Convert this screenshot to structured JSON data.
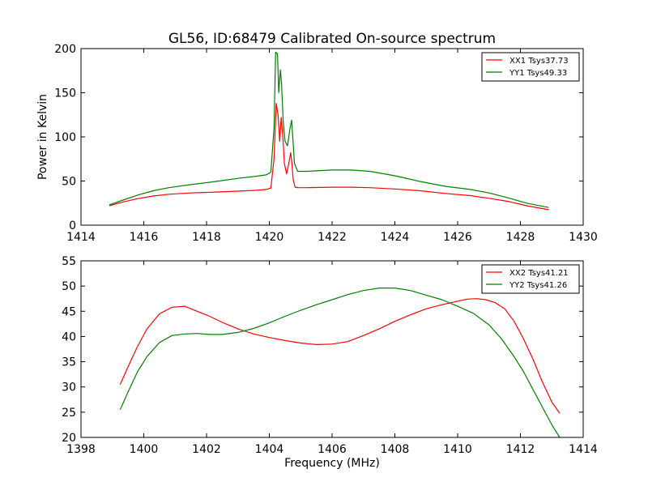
{
  "figure": {
    "title": "GL56, ID:68479 Calibrated On-source spectrum",
    "xlabel_bottom": "Frequency (MHz)"
  },
  "chart_data": [
    {
      "type": "line",
      "title": "GL56, ID:68479 Calibrated On-source spectrum",
      "xlabel": "",
      "ylabel": "Power in Kelvin",
      "xlim": [
        1414,
        1430
      ],
      "ylim": [
        0,
        200
      ],
      "xticks": [
        1414,
        1416,
        1418,
        1420,
        1422,
        1424,
        1426,
        1428,
        1430
      ],
      "yticks": [
        0,
        50,
        100,
        150,
        200
      ],
      "legend_position": "top-right",
      "series": [
        {
          "name": "XX1 Tsys37.73",
          "color": "#ff0000",
          "x": [
            1414.9,
            1415.3,
            1415.8,
            1416.3,
            1416.8,
            1417.5,
            1418.3,
            1419.0,
            1419.6,
            1419.9,
            1420.05,
            1420.15,
            1420.22,
            1420.28,
            1420.33,
            1420.38,
            1420.43,
            1420.48,
            1420.55,
            1420.62,
            1420.68,
            1420.72,
            1420.76,
            1420.82,
            1420.9,
            1421.2,
            1422.0,
            1422.6,
            1423.2,
            1424.0,
            1424.8,
            1425.6,
            1426.4,
            1427.0,
            1427.6,
            1428.2,
            1428.9
          ],
          "y": [
            22,
            26,
            30,
            33,
            35,
            36.5,
            37.5,
            38.5,
            39.5,
            40.5,
            42,
            75,
            138,
            125,
            95,
            122,
            100,
            70,
            58,
            70,
            82,
            70,
            52,
            43,
            42.5,
            42.5,
            43,
            43,
            42.5,
            41,
            39,
            36,
            33.5,
            30.5,
            27,
            22,
            17.5
          ]
        },
        {
          "name": "YY1 Tsys49.33",
          "color": "#008000",
          "x": [
            1414.9,
            1415.3,
            1415.8,
            1416.3,
            1416.8,
            1417.5,
            1418.3,
            1419.0,
            1419.6,
            1419.9,
            1420.05,
            1420.15,
            1420.2,
            1420.26,
            1420.3,
            1420.35,
            1420.39,
            1420.44,
            1420.5,
            1420.58,
            1420.66,
            1420.71,
            1420.75,
            1420.8,
            1420.9,
            1421.2,
            1422.0,
            1422.6,
            1423.2,
            1424.0,
            1424.8,
            1425.6,
            1426.4,
            1427.0,
            1427.6,
            1428.2,
            1428.9
          ],
          "y": [
            23,
            28,
            34,
            39,
            42.5,
            46,
            49.5,
            53,
            55.5,
            57,
            60,
            110,
            196,
            194,
            150,
            176,
            160,
            118,
            95,
            90,
            110,
            119,
            98,
            70,
            61,
            61,
            62.5,
            62.5,
            61,
            56,
            49.5,
            44,
            40.5,
            36.5,
            31,
            25,
            20
          ]
        }
      ]
    },
    {
      "type": "line",
      "title": "",
      "xlabel": "Frequency (MHz)",
      "ylabel": "",
      "xlim": [
        1398,
        1414
      ],
      "ylim": [
        20,
        55
      ],
      "xticks": [
        1398,
        1400,
        1402,
        1404,
        1406,
        1408,
        1410,
        1412,
        1414
      ],
      "yticks": [
        20,
        25,
        30,
        35,
        40,
        45,
        50,
        55
      ],
      "legend_position": "top-right",
      "series": [
        {
          "name": "XX2 Tsys41.21",
          "color": "#ff0000",
          "x": [
            1399.25,
            1399.5,
            1399.8,
            1400.1,
            1400.5,
            1400.9,
            1401.3,
            1401.7,
            1402.1,
            1402.5,
            1403.0,
            1403.5,
            1404.0,
            1404.5,
            1405.0,
            1405.5,
            1406.0,
            1406.5,
            1407.0,
            1407.5,
            1408.0,
            1408.5,
            1409.0,
            1409.5,
            1410.0,
            1410.3,
            1410.6,
            1410.9,
            1411.2,
            1411.5,
            1411.8,
            1412.1,
            1412.4,
            1412.7,
            1413.0,
            1413.25
          ],
          "y": [
            30.5,
            34,
            38,
            41.5,
            44.5,
            45.8,
            46,
            45,
            44,
            42.8,
            41.5,
            40.5,
            39.8,
            39.2,
            38.7,
            38.4,
            38.5,
            39,
            40.2,
            41.5,
            43,
            44.3,
            45.5,
            46.3,
            47,
            47.4,
            47.5,
            47.3,
            46.7,
            45.5,
            43,
            39.5,
            35.5,
            31,
            27,
            24.8
          ]
        },
        {
          "name": "YY2 Tsys41.26",
          "color": "#008000",
          "x": [
            1399.25,
            1399.5,
            1399.8,
            1400.1,
            1400.5,
            1400.9,
            1401.3,
            1401.7,
            1402.1,
            1402.5,
            1403.0,
            1403.5,
            1404.0,
            1404.5,
            1405.0,
            1405.5,
            1406.0,
            1406.5,
            1407.0,
            1407.5,
            1408.0,
            1408.5,
            1409.0,
            1409.5,
            1410.0,
            1410.5,
            1411.0,
            1411.4,
            1411.8,
            1412.1,
            1412.4,
            1412.7,
            1413.0,
            1413.25
          ],
          "y": [
            25.5,
            29,
            33,
            36,
            38.8,
            40.2,
            40.5,
            40.6,
            40.4,
            40.4,
            40.8,
            41.6,
            42.7,
            44,
            45.2,
            46.3,
            47.3,
            48.3,
            49.1,
            49.6,
            49.6,
            49.1,
            48.2,
            47.3,
            46,
            44.6,
            42.3,
            39.5,
            36,
            33,
            29.5,
            26,
            22.5,
            20
          ]
        }
      ]
    }
  ]
}
